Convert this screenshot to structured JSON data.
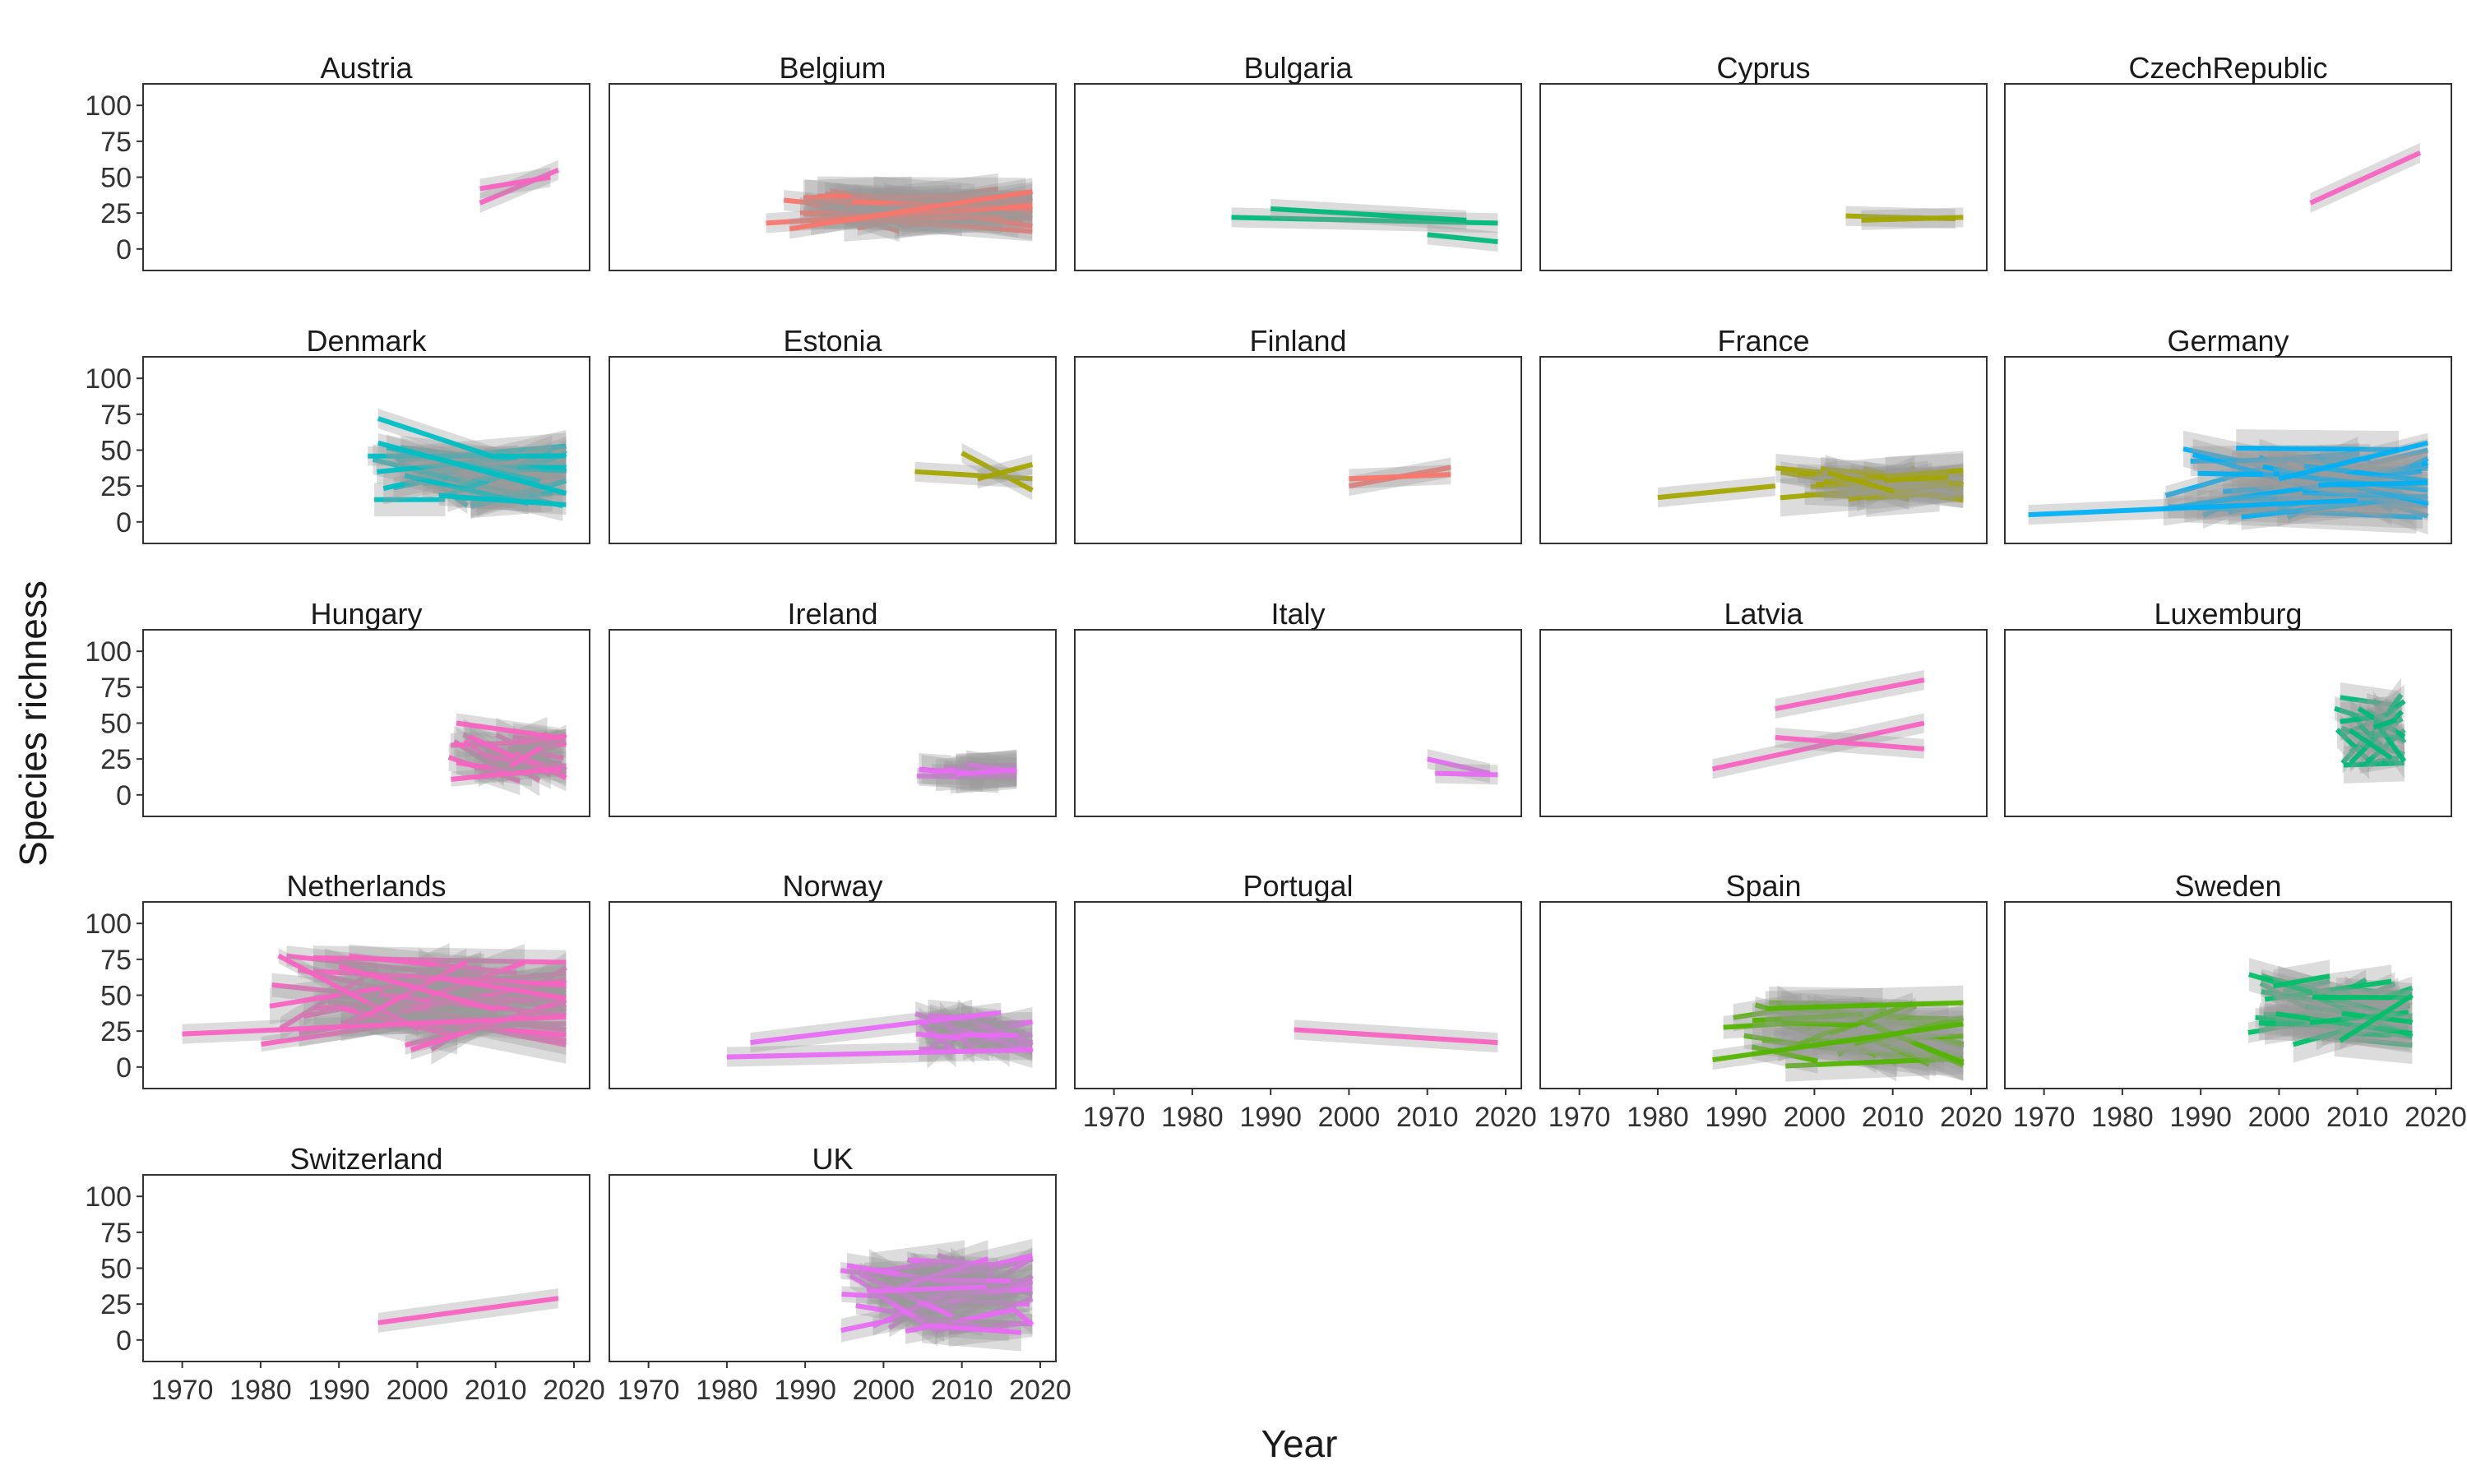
{
  "chart_data": {
    "type": "line",
    "xlabel": "Year",
    "ylabel": "Species richness",
    "xlim": [
      1965,
      2022
    ],
    "ylim": [
      -15,
      115
    ],
    "x_ticks": [
      1970,
      1980,
      1990,
      2000,
      2010,
      2020
    ],
    "y_ticks": [
      0,
      25,
      50,
      75,
      100
    ],
    "grid": false,
    "legend": "none",
    "panels": [
      {
        "name": "Austria",
        "color": "#f763c2",
        "lines": [
          [
            2008,
            32,
            2018,
            55
          ],
          [
            2008,
            42,
            2017,
            50
          ]
        ]
      },
      {
        "name": "Belgium",
        "color": "#f8766d",
        "dense": {
          "x0": 1985,
          "x1": 2019,
          "y0": 12,
          "y1": 42,
          "n": 30
        },
        "lines": [
          [
            1985,
            18,
            2019,
            30
          ],
          [
            1988,
            14,
            2019,
            40
          ]
        ]
      },
      {
        "name": "Bulgaria",
        "color": "#00b87a",
        "lines": [
          [
            1985,
            22,
            2019,
            18
          ],
          [
            1990,
            28,
            2015,
            20
          ],
          [
            2010,
            10,
            2019,
            5
          ]
        ]
      },
      {
        "name": "Cyprus",
        "color": "#a3a500",
        "lines": [
          [
            2004,
            23,
            2018,
            21
          ],
          [
            2006,
            20,
            2019,
            22
          ]
        ]
      },
      {
        "name": "CzechRepublic",
        "color": "#f763c2",
        "lines": [
          [
            2004,
            32,
            2018,
            67
          ]
        ]
      },
      {
        "name": "Denmark",
        "color": "#00bfc4",
        "dense": {
          "x0": 1993,
          "x1": 2019,
          "y0": 10,
          "y1": 55,
          "n": 30
        },
        "lines": [
          [
            1995,
            72,
            2010,
            45
          ],
          [
            1995,
            55,
            2019,
            20
          ]
        ]
      },
      {
        "name": "Estonia",
        "color": "#a3a500",
        "lines": [
          [
            2004,
            35,
            2019,
            30
          ],
          [
            2010,
            48,
            2019,
            22
          ],
          [
            2012,
            30,
            2019,
            40
          ]
        ]
      },
      {
        "name": "Finland",
        "color": "#f8766d",
        "lines": [
          [
            2000,
            25,
            2013,
            38
          ],
          [
            2000,
            30,
            2013,
            33
          ]
        ]
      },
      {
        "name": "France",
        "color": "#a3a500",
        "dense": {
          "x0": 1995,
          "x1": 2019,
          "y0": 15,
          "y1": 38,
          "n": 30
        },
        "lines": [
          [
            1980,
            17,
            1995,
            25
          ]
        ]
      },
      {
        "name": "Germany",
        "color": "#00b0f6",
        "dense": {
          "x0": 1985,
          "x1": 2019,
          "y0": 3,
          "y1": 52,
          "n": 35
        },
        "lines": [
          [
            1968,
            5,
            2010,
            15
          ],
          [
            2000,
            30,
            2019,
            55
          ]
        ]
      },
      {
        "name": "Hungary",
        "color": "#f763c2",
        "dense": {
          "x0": 2004,
          "x1": 2019,
          "y0": 8,
          "y1": 45,
          "n": 25
        },
        "lines": [
          [
            2005,
            50,
            2018,
            40
          ]
        ]
      },
      {
        "name": "Ireland",
        "color": "#e76bf3",
        "dense": {
          "x0": 2004,
          "x1": 2017,
          "y0": 12,
          "y1": 22,
          "n": 15
        },
        "lines": []
      },
      {
        "name": "Italy",
        "color": "#e76bf3",
        "lines": [
          [
            2010,
            25,
            2018,
            15
          ],
          [
            2011,
            15,
            2019,
            14
          ]
        ]
      },
      {
        "name": "Latvia",
        "color": "#f763c2",
        "lines": [
          [
            1987,
            18,
            2014,
            50
          ],
          [
            1995,
            60,
            2014,
            80
          ],
          [
            1995,
            40,
            2014,
            32
          ]
        ]
      },
      {
        "name": "Luxemburg",
        "color": "#00b87a",
        "dense": {
          "x0": 2007,
          "x1": 2016,
          "y0": 20,
          "y1": 70,
          "n": 25
        },
        "lines": []
      },
      {
        "name": "Netherlands",
        "color": "#f763c2",
        "dense": {
          "x0": 1980,
          "x1": 2019,
          "y0": 10,
          "y1": 80,
          "n": 40
        },
        "lines": [
          [
            1970,
            23,
            2019,
            35
          ],
          [
            1990,
            70,
            2010,
            40
          ]
        ]
      },
      {
        "name": "Norway",
        "color": "#e76bf3",
        "dense": {
          "x0": 2004,
          "x1": 2019,
          "y0": 10,
          "y1": 38,
          "n": 25
        },
        "lines": [
          [
            1980,
            7,
            2019,
            12
          ],
          [
            1983,
            17,
            2015,
            38
          ]
        ]
      },
      {
        "name": "Portugal",
        "color": "#f763c2",
        "lines": [
          [
            1993,
            26,
            2019,
            17
          ]
        ]
      },
      {
        "name": "Spain",
        "color": "#53b400",
        "dense": {
          "x0": 1987,
          "x1": 2019,
          "y0": 0,
          "y1": 45,
          "n": 35
        },
        "lines": [
          [
            1987,
            5,
            2019,
            30
          ]
        ]
      },
      {
        "name": "Sweden",
        "color": "#00c06a",
        "dense": {
          "x0": 1996,
          "x1": 2017,
          "y0": 15,
          "y1": 65,
          "n": 35
        },
        "lines": []
      },
      {
        "name": "Switzerland",
        "color": "#f763c2",
        "lines": [
          [
            1995,
            12,
            2018,
            29
          ]
        ]
      },
      {
        "name": "UK",
        "color": "#e76bf3",
        "dense": {
          "x0": 1994,
          "x1": 2019,
          "y0": 5,
          "y1": 60,
          "n": 40
        },
        "lines": [
          [
            2005,
            10,
            2016,
            6
          ]
        ]
      }
    ]
  }
}
